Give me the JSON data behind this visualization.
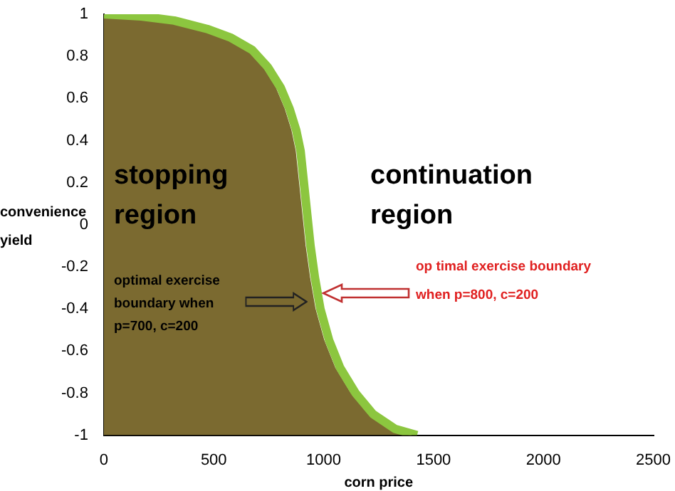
{
  "chart_data": {
    "type": "line",
    "xlabel": "corn price",
    "ylabel": "convenience yield",
    "xlim": [
      0,
      2500
    ],
    "xticks": [
      0,
      500,
      1000,
      1500,
      2000,
      2500
    ],
    "ylim": [
      -1,
      1
    ],
    "yticks": [
      -1,
      -0.8,
      -0.6,
      -0.4,
      -0.2,
      0,
      0.2,
      0.4,
      0.6,
      0.8,
      1
    ],
    "grid": false,
    "legend": false,
    "marker": "none",
    "series": [
      {
        "type": "area",
        "color": "#7b6a30",
        "x": [
          0,
          0,
          150,
          300,
          450,
          550,
          650,
          720,
          780,
          820,
          850,
          870,
          885,
          900,
          915,
          935,
          960,
          1000,
          1050,
          1120,
          1200,
          1300,
          1400
        ],
        "values": [
          -1,
          1,
          0.99,
          0.97,
          0.93,
          0.89,
          0.83,
          0.75,
          0.65,
          0.55,
          0.45,
          0.35,
          0.2,
          0.05,
          -0.1,
          -0.25,
          -0.4,
          -0.55,
          -0.68,
          -0.8,
          -0.9,
          -0.97,
          -1
        ]
      },
      {
        "type": "line",
        "color": "#8cc63f",
        "x": [
          0,
          170,
          320,
          470,
          575,
          675,
          745,
          805,
          845,
          875,
          895,
          910,
          925,
          940,
          960,
          985,
          1025,
          1075,
          1145,
          1225,
          1325,
          1425
        ],
        "values": [
          1,
          0.99,
          0.97,
          0.93,
          0.89,
          0.83,
          0.75,
          0.65,
          0.55,
          0.45,
          0.35,
          0.2,
          0.05,
          -0.1,
          -0.25,
          -0.4,
          -0.55,
          -0.68,
          -0.8,
          -0.9,
          -0.97,
          -1
        ]
      }
    ],
    "annotations": [
      "stopping region",
      "continuation region",
      "optimal exercise boundary when p=700, c=200",
      "op timal exercise boundary when p=800, c=200"
    ]
  }
}
